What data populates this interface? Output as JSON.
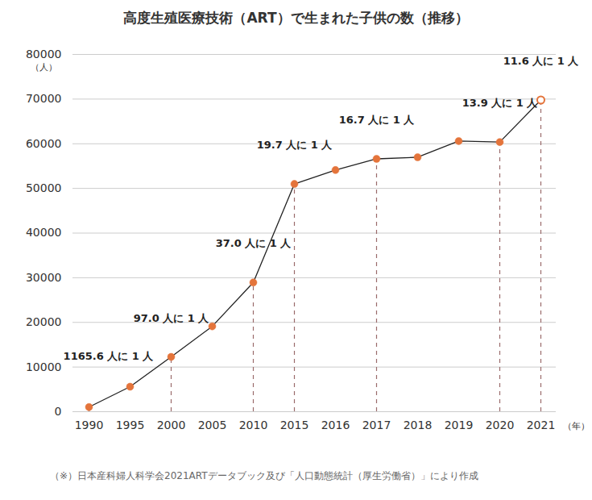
{
  "chart_data": {
    "type": "line",
    "title": "高度生殖医療技術（ART）で生まれた子供の数（推移）",
    "y_label": "（人）",
    "x_label": "（年）",
    "source": "（※）日本産科婦人科学会2021ARTデータブック及び「人口動態統計（厚生労働省）」により作成",
    "categories": [
      "1990",
      "1995",
      "2000",
      "2005",
      "2010",
      "2015",
      "2016",
      "2017",
      "2018",
      "2019",
      "2020",
      "2021"
    ],
    "values": [
      1031,
      5600,
      12274,
      19112,
      28945,
      51001,
      54110,
      56617,
      56979,
      60598,
      60381,
      69797
    ],
    "color": "#e4743b",
    "marker": "circle",
    "ylim": [
      0,
      80000
    ],
    "yticks": [
      0,
      10000,
      20000,
      30000,
      40000,
      50000,
      60000,
      70000,
      80000
    ],
    "grid": true,
    "annotations": [
      {
        "x": "1990",
        "text": "1165.6 人に 1 人"
      },
      {
        "x": "2000",
        "text": "97.0 人に 1 人"
      },
      {
        "x": "2010",
        "text": "37.0 人に 1 人"
      },
      {
        "x": "2015",
        "text": "19.7 人に 1 人"
      },
      {
        "x": "2017",
        "text": "16.7 人に 1 人"
      },
      {
        "x": "2020",
        "text": "13.9 人に 1 人"
      },
      {
        "x": "2021",
        "text": "11.6 人に 1 人"
      }
    ]
  }
}
